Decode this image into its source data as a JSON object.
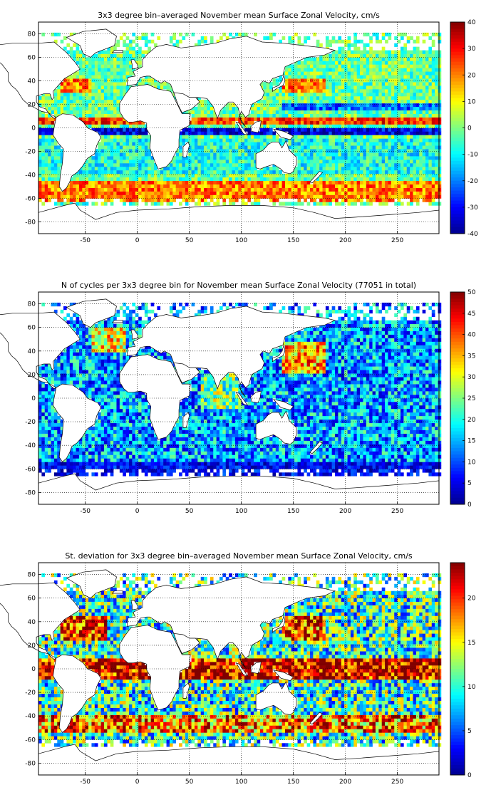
{
  "colors": {
    "colormap": [
      "#00008f",
      "#0000ff",
      "#0080ff",
      "#00ffff",
      "#80ff80",
      "#ffff00",
      "#ff8000",
      "#ff0000",
      "#800000"
    ],
    "land": "#ffffff",
    "coast": "#000000"
  },
  "chart_data": [
    {
      "type": "heatmap",
      "title": "3x3 degree bin–averaged November mean Surface Zonal Velocity, cm/s",
      "xlabel": "",
      "ylabel": "",
      "xlim": [
        -95,
        290
      ],
      "ylim": [
        -90,
        90
      ],
      "x_ticks": [
        "-50",
        "0",
        "50",
        "100",
        "150",
        "200",
        "250"
      ],
      "y_ticks": [
        "80",
        "60",
        "40",
        "20",
        "0",
        "-20",
        "-40",
        "-60",
        "-80"
      ],
      "colorbar": {
        "range": [
          -40,
          40
        ],
        "ticks": [
          "40",
          "30",
          "20",
          "10",
          "0",
          "-10",
          "-20",
          "-30",
          "-40"
        ]
      },
      "grid": true,
      "bin_size_deg": 3,
      "features": [
        {
          "name": "Equatorial countercurrent band",
          "lat": 7,
          "value": 30
        },
        {
          "name": "South Equatorial Current band",
          "lat": -3,
          "value": -35
        },
        {
          "name": "Antarctic Circumpolar Current band",
          "lat": -55,
          "value": 30
        },
        {
          "name": "Kuroshio extension",
          "lat": 36,
          "value": 35
        },
        {
          "name": "Gulf Stream extension",
          "lat": 40,
          "value": 35
        }
      ]
    },
    {
      "type": "heatmap",
      "title": "N of cycles per 3x3 degree bin for November mean Surface Zonal Velocity (77051 in total)",
      "xlabel": "",
      "ylabel": "",
      "xlim": [
        -95,
        290
      ],
      "ylim": [
        -90,
        90
      ],
      "x_ticks": [
        "-50",
        "0",
        "50",
        "100",
        "150",
        "200",
        "250"
      ],
      "y_ticks": [
        "80",
        "60",
        "40",
        "20",
        "0",
        "-20",
        "-40",
        "-60",
        "-80"
      ],
      "colorbar": {
        "range": [
          0,
          50
        ],
        "ticks": [
          "50",
          "45",
          "40",
          "35",
          "30",
          "25",
          "20",
          "15",
          "10",
          "5",
          "0"
        ]
      },
      "grid": true,
      "bin_size_deg": 3,
      "total_cycles": 77051
    },
    {
      "type": "heatmap",
      "title": "St. deviation for 3x3 degree bin–averaged November mean Surface Zonal Velocity, cm/s",
      "xlabel": "",
      "ylabel": "",
      "xlim": [
        -95,
        290
      ],
      "ylim": [
        -90,
        90
      ],
      "x_ticks": [
        "-50",
        "0",
        "50",
        "100",
        "150",
        "200",
        "250"
      ],
      "y_ticks": [
        "80",
        "60",
        "40",
        "20",
        "0",
        "-20",
        "-40",
        "-60",
        "-80"
      ],
      "colorbar": {
        "range": [
          0,
          24
        ],
        "ticks": [
          "20",
          "15",
          "10",
          "5",
          "0"
        ]
      },
      "grid": true,
      "bin_size_deg": 3
    }
  ]
}
